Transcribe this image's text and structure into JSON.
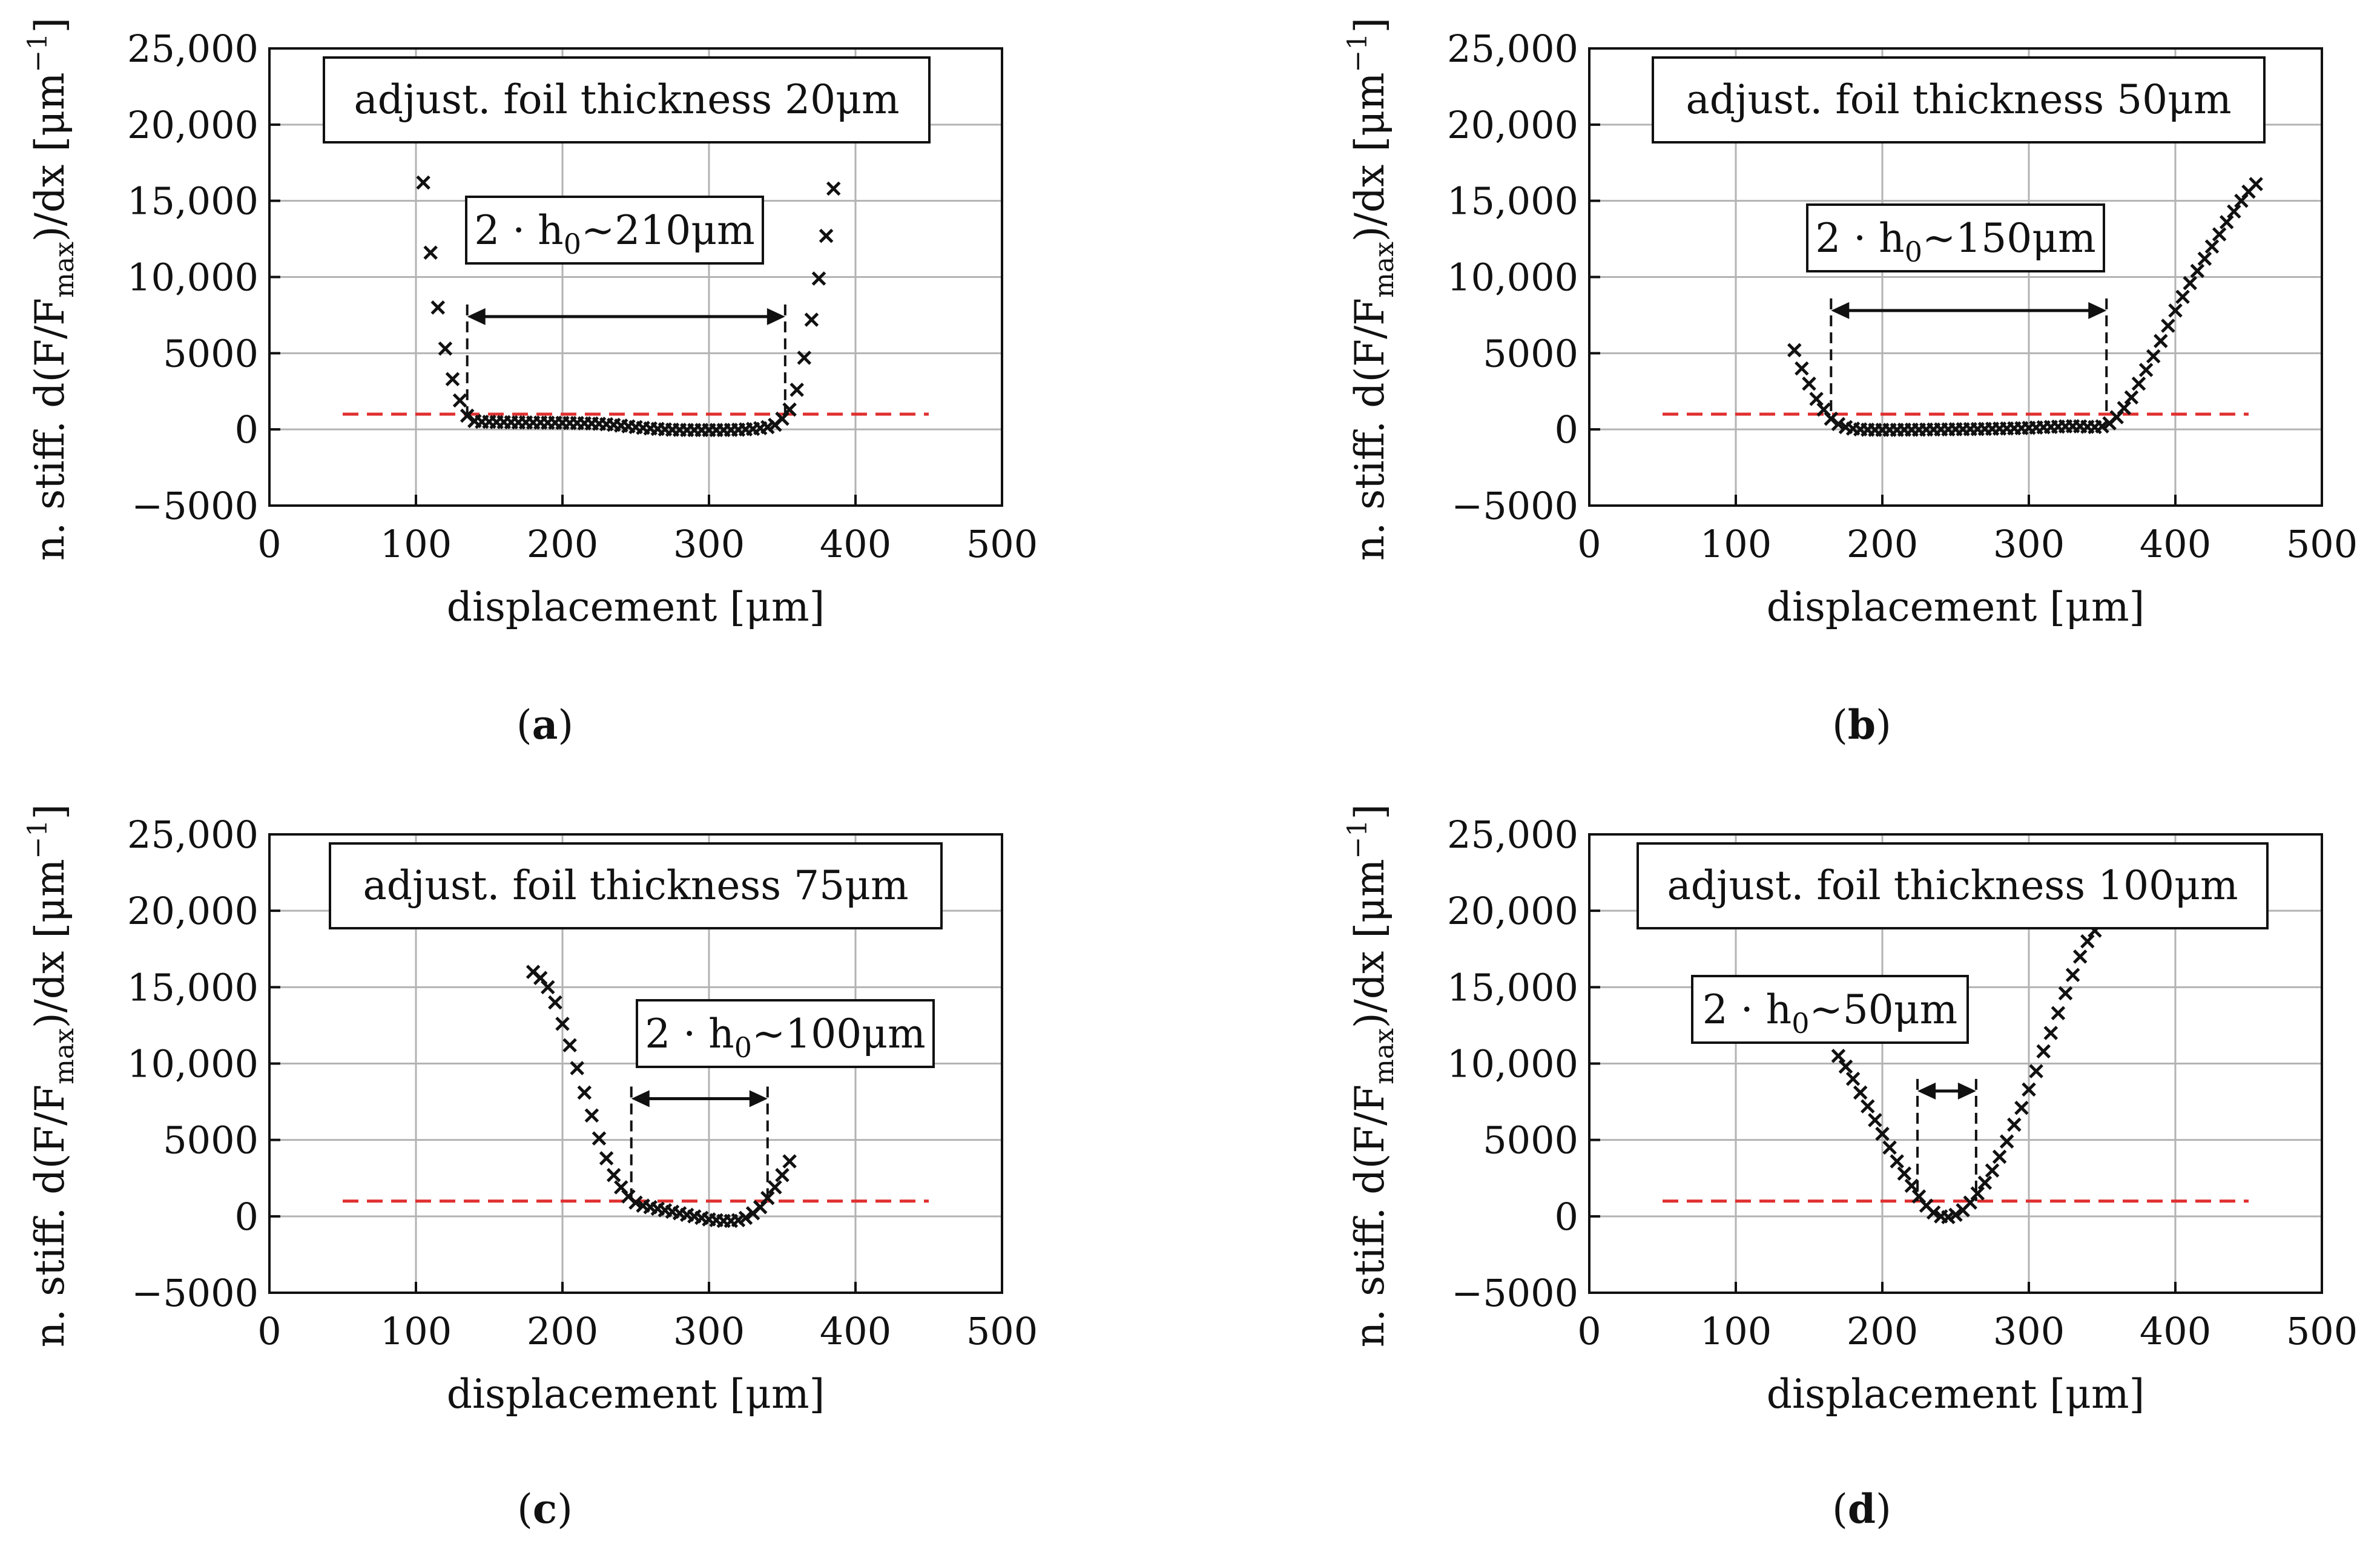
{
  "figure": {
    "shared_axes": {
      "xlabel": "displacement [μm]",
      "ylabel_parts": [
        "n. stiff. d(F/F",
        "max",
        ")/dx  [μm",
        "−1",
        "]"
      ],
      "xlim": [
        0,
        500
      ],
      "ylim": [
        -5000,
        25000
      ],
      "xticks": [
        0,
        100,
        200,
        300,
        400,
        500
      ],
      "xtick_labels": [
        "0",
        "100",
        "200",
        "300",
        "400",
        "500"
      ],
      "yticks": [
        -5000,
        0,
        5000,
        10000,
        15000,
        20000,
        25000
      ],
      "ytick_labels": [
        "−5000",
        "0",
        "5000",
        "10,000",
        "15,000",
        "20,000",
        "25,000"
      ],
      "grid": true,
      "threshold_color": "#e03030",
      "marker_color": "#111111"
    }
  },
  "chart_data": [
    {
      "type": "scatter",
      "panel": "(a)",
      "caption_letter": "a",
      "legend_text": "adjust. foil thickness 20μm",
      "h0_label": [
        "2 · h",
        "0",
        "~210μm"
      ],
      "threshold": {
        "y": 1000,
        "x_range": [
          50,
          450
        ]
      },
      "h0_bracket": {
        "x_start": 135,
        "x_end": 352,
        "y": 7400
      },
      "series": [
        {
          "x": [
            105,
            110,
            115,
            120,
            125,
            130,
            135,
            140,
            145,
            150,
            155,
            160,
            165,
            170,
            175,
            180,
            185,
            190,
            195,
            200,
            205,
            210,
            215,
            220,
            225,
            230,
            235,
            240,
            245,
            250,
            255,
            260,
            265,
            270,
            275,
            280,
            285,
            290,
            295,
            300,
            305,
            310,
            315,
            320,
            325,
            330,
            335,
            340,
            345,
            350,
            355,
            360,
            365,
            370,
            375,
            380,
            385
          ],
          "y": [
            16200,
            11600,
            8000,
            5300,
            3300,
            1900,
            900,
            550,
            500,
            500,
            480,
            480,
            470,
            460,
            460,
            450,
            450,
            440,
            440,
            430,
            420,
            420,
            400,
            390,
            370,
            340,
            300,
            250,
            200,
            150,
            100,
            60,
            30,
            0,
            -20,
            -30,
            -40,
            -40,
            -40,
            -40,
            -40,
            -40,
            -30,
            -20,
            0,
            30,
            80,
            150,
            300,
            700,
            1300,
            2600,
            4700,
            7200,
            9900,
            12700,
            15800
          ]
        }
      ]
    },
    {
      "type": "scatter",
      "panel": "(b)",
      "caption_letter": "b",
      "legend_text": "adjust. foil thickness 50μm",
      "h0_label": [
        "2 · h",
        "0",
        "~150μm"
      ],
      "threshold": {
        "y": 1000,
        "x_range": [
          50,
          450
        ]
      },
      "h0_bracket": {
        "x_start": 165,
        "x_end": 353,
        "y": 7800
      },
      "series": [
        {
          "x": [
            140,
            145,
            150,
            155,
            160,
            165,
            170,
            175,
            180,
            185,
            190,
            195,
            200,
            205,
            210,
            215,
            220,
            225,
            230,
            235,
            240,
            245,
            250,
            255,
            260,
            265,
            270,
            275,
            280,
            285,
            290,
            295,
            300,
            305,
            310,
            315,
            320,
            325,
            330,
            335,
            340,
            345,
            350,
            355,
            360,
            365,
            370,
            375,
            380,
            385,
            390,
            395,
            400,
            405,
            410,
            415,
            420,
            425,
            430,
            435,
            440,
            445,
            450,
            455
          ],
          "y": [
            5200,
            4000,
            3000,
            2000,
            1300,
            700,
            350,
            150,
            50,
            0,
            -20,
            -30,
            -30,
            -30,
            -30,
            -20,
            -20,
            -20,
            -10,
            -10,
            0,
            0,
            10,
            10,
            20,
            20,
            30,
            40,
            50,
            60,
            70,
            80,
            100,
            120,
            140,
            160,
            180,
            200,
            210,
            200,
            170,
            150,
            200,
            400,
            800,
            1400,
            2100,
            3000,
            3900,
            4800,
            5800,
            6800,
            7800,
            8700,
            9600,
            10400,
            11200,
            12000,
            12800,
            13600,
            14300,
            15000,
            15600,
            16100
          ]
        }
      ]
    },
    {
      "type": "scatter",
      "panel": "(c)",
      "caption_letter": "c",
      "legend_text": "adjust. foil thickness 75μm",
      "h0_label": [
        "2 · h",
        "0",
        "~100μm"
      ],
      "threshold": {
        "y": 1000,
        "x_range": [
          50,
          450
        ]
      },
      "h0_bracket": {
        "x_start": 247,
        "x_end": 340,
        "y": 7700
      },
      "series": [
        {
          "x": [
            180,
            185,
            190,
            195,
            200,
            205,
            210,
            215,
            220,
            225,
            230,
            235,
            240,
            245,
            250,
            255,
            260,
            265,
            270,
            275,
            280,
            285,
            290,
            295,
            300,
            305,
            310,
            315,
            320,
            325,
            330,
            335,
            340,
            345,
            350,
            355
          ],
          "y": [
            16000,
            15600,
            15000,
            14000,
            12600,
            11200,
            9700,
            8100,
            6600,
            5100,
            3800,
            2700,
            1900,
            1300,
            900,
            700,
            600,
            500,
            400,
            300,
            200,
            100,
            0,
            -100,
            -200,
            -250,
            -300,
            -300,
            -250,
            -100,
            200,
            600,
            1200,
            1900,
            2700,
            3600
          ]
        }
      ]
    },
    {
      "type": "scatter",
      "panel": "(d)",
      "caption_letter": "d",
      "legend_text": "adjust. foil thickness 100μm",
      "h0_label": [
        "2 · h",
        "0",
        "~50μm"
      ],
      "threshold": {
        "y": 1000,
        "x_range": [
          50,
          450
        ]
      },
      "h0_bracket": {
        "x_start": 224,
        "x_end": 264,
        "y": 8200
      },
      "series": [
        {
          "x": [
            170,
            175,
            180,
            185,
            190,
            195,
            200,
            205,
            210,
            215,
            220,
            225,
            230,
            235,
            240,
            245,
            250,
            255,
            260,
            265,
            270,
            275,
            280,
            285,
            290,
            295,
            300,
            305,
            310,
            315,
            320,
            325,
            330,
            335,
            340,
            345
          ],
          "y": [
            10500,
            9800,
            9000,
            8100,
            7200,
            6300,
            5400,
            4500,
            3600,
            2800,
            2000,
            1300,
            700,
            250,
            0,
            -50,
            100,
            400,
            900,
            1500,
            2200,
            3000,
            3900,
            4900,
            6000,
            7100,
            8300,
            9500,
            10800,
            12000,
            13300,
            14600,
            15800,
            17000,
            18000,
            18700
          ]
        }
      ]
    }
  ]
}
